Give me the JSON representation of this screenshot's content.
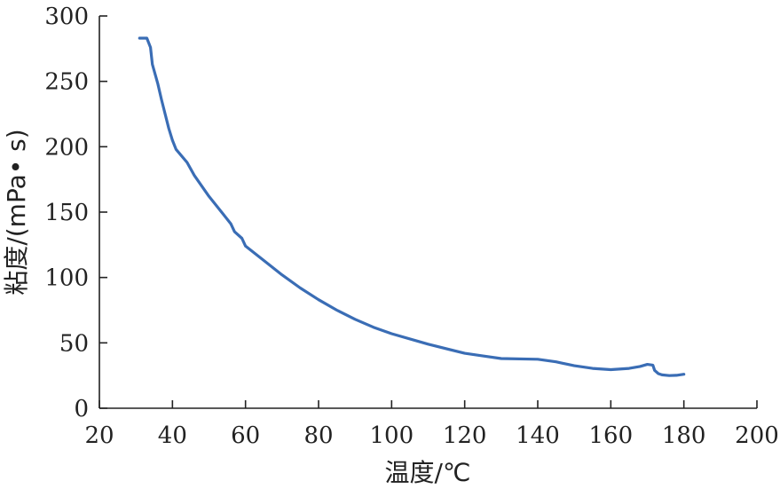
{
  "chart_data": {
    "type": "line",
    "title": "",
    "xlabel": "温度/℃",
    "ylabel": "粘度/(mPa• s)",
    "xlim": [
      20,
      200
    ],
    "ylim": [
      0,
      300
    ],
    "xticks": [
      "20",
      "40",
      "60",
      "80",
      "100",
      "120",
      "140",
      "160",
      "180",
      "200"
    ],
    "yticks": [
      "0",
      "50",
      "100",
      "150",
      "200",
      "250",
      "300"
    ],
    "grid": false,
    "legend": "none",
    "series": [
      {
        "color": "#3A6DB5",
        "x": [
          31,
          33,
          34,
          34.5,
          36,
          37,
          38,
          39,
          40,
          41,
          44,
          46,
          50,
          54,
          56,
          57,
          59,
          60,
          65,
          70,
          75,
          80,
          85,
          90,
          95,
          100,
          110,
          120,
          125,
          130,
          140,
          145,
          150,
          155,
          160,
          165,
          168,
          170,
          171.5,
          172,
          173,
          174,
          176,
          178,
          180
        ],
        "y": [
          283,
          283,
          276,
          263,
          248,
          236,
          225,
          214,
          205,
          198,
          188,
          178,
          162,
          148,
          141,
          135,
          130,
          124,
          113,
          102,
          92,
          83,
          75,
          68,
          62,
          57,
          49,
          42,
          40,
          38,
          37.5,
          35.5,
          32.5,
          30.5,
          29.5,
          30.5,
          32,
          33.5,
          33,
          29,
          26.5,
          25.5,
          25,
          25.2,
          26
        ]
      }
    ]
  }
}
